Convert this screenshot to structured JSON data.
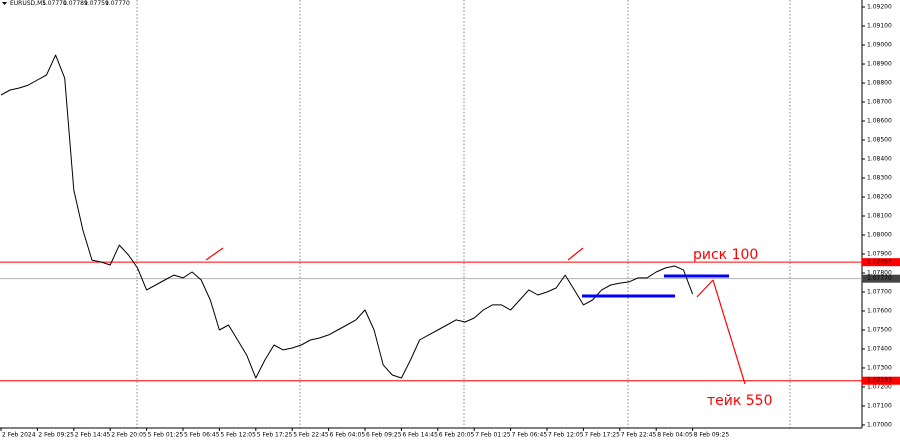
{
  "chart_data": {
    "type": "line",
    "symbol": "EURUSD,M5",
    "ohlc": [
      "1.07770",
      "1.07789",
      "1.07759",
      "1.07770"
    ],
    "categories": [
      "2 Feb 2024",
      null,
      null,
      null,
      "2 Feb 09:25",
      null,
      null,
      null,
      "2 Feb 14:45",
      null,
      null,
      null,
      "2 Feb 20:05",
      null,
      null,
      null,
      "5 Feb 01:25",
      null,
      null,
      null,
      "5 Feb 06:45",
      null,
      null,
      null,
      "5 Feb 12:05",
      null,
      null,
      null,
      "5 Feb 17:25",
      null,
      null,
      null,
      "5 Feb 22:45",
      null,
      null,
      null,
      "6 Feb 04:05",
      null,
      null,
      null,
      "6 Feb 09:25",
      null,
      null,
      null,
      "6 Feb 14:45",
      null,
      null,
      null,
      "6 Feb 20:05",
      null,
      null,
      null,
      "7 Feb 01:25",
      null,
      null,
      null,
      "7 Feb 06:45",
      null,
      null,
      null,
      "7 Feb 12:05",
      null,
      null,
      null,
      "7 Feb 17:25",
      null,
      null,
      null,
      "7 Feb 22:45",
      null,
      null,
      null,
      "8 Feb 04:05",
      null,
      null,
      null,
      "8 Feb 09:25"
    ],
    "series": [
      {
        "name": "EURUSD",
        "color": "#000000",
        "values": [
          1.08737,
          1.08763,
          1.08774,
          1.08789,
          1.08816,
          1.08842,
          1.08947,
          1.08826,
          1.08237,
          1.08026,
          1.07868,
          1.07858,
          1.07842,
          1.07947,
          1.07895,
          1.07826,
          1.07711,
          1.07737,
          1.07763,
          1.07789,
          1.07774,
          1.07805,
          1.07763,
          1.07658,
          1.075,
          1.07526,
          1.07447,
          1.07368,
          1.07247,
          1.07342,
          1.07421,
          1.07395,
          1.07405,
          1.07421,
          1.07447,
          1.07458,
          1.07474,
          1.075,
          1.07526,
          1.07553,
          1.07605,
          1.075,
          1.07316,
          1.07263,
          1.07247,
          1.07342,
          1.07447,
          1.07474,
          1.075,
          1.07526,
          1.07553,
          1.07542,
          1.07563,
          1.07605,
          1.07632,
          1.07632,
          1.07605,
          1.07658,
          1.07711,
          1.07684,
          1.077,
          1.07721,
          1.07789,
          1.07711,
          1.07632,
          1.07658,
          1.07711,
          1.07737,
          1.07747,
          1.07753,
          1.07774,
          1.07774,
          1.07805,
          1.07826,
          1.07837,
          1.07816,
          1.07689
        ]
      }
    ],
    "levels": [
      {
        "value": 1.07857,
        "label": "1.07857",
        "color": "#ff0000"
      },
      {
        "value": 1.07233,
        "label": "1.07233",
        "color": "#ff0000"
      },
      {
        "value": 1.0777,
        "label": "1.07770",
        "color": "#b0b0b0"
      }
    ],
    "blue_levels": [
      1.07679,
      1.07784
    ],
    "annotations": [
      "риск 100",
      "тейк 550"
    ],
    "ylim": [
      1.06984,
      1.09237
    ],
    "yticks": [
      {
        "value": 1.07,
        "label": "1.07000"
      },
      {
        "value": 1.071,
        "label": "1.07100"
      },
      {
        "value": 1.072,
        "label": "1.07200"
      },
      {
        "value": 1.073,
        "label": "1.07300"
      },
      {
        "value": 1.074,
        "label": "1.07400"
      },
      {
        "value": 1.075,
        "label": "1.07500"
      },
      {
        "value": 1.076,
        "label": "1.07600"
      },
      {
        "value": 1.077,
        "label": "1.07700"
      },
      {
        "value": 1.078,
        "label": "1.07800"
      },
      {
        "value": 1.079,
        "label": "1.07900"
      },
      {
        "value": 1.08,
        "label": "1.08000"
      },
      {
        "value": 1.081,
        "label": "1.08100"
      },
      {
        "value": 1.082,
        "label": "1.08200"
      },
      {
        "value": 1.083,
        "label": "1.08300"
      },
      {
        "value": 1.084,
        "label": "1.08400"
      },
      {
        "value": 1.085,
        "label": "1.08500"
      },
      {
        "value": 1.086,
        "label": "1.08600"
      },
      {
        "value": 1.087,
        "label": "1.08700"
      },
      {
        "value": 1.088,
        "label": "1.08800"
      },
      {
        "value": 1.089,
        "label": "1.08900"
      },
      {
        "value": 1.09,
        "label": "1.09000"
      },
      {
        "value": 1.091,
        "label": "1.09100"
      },
      {
        "value": 1.092,
        "label": "1.09200"
      }
    ]
  }
}
